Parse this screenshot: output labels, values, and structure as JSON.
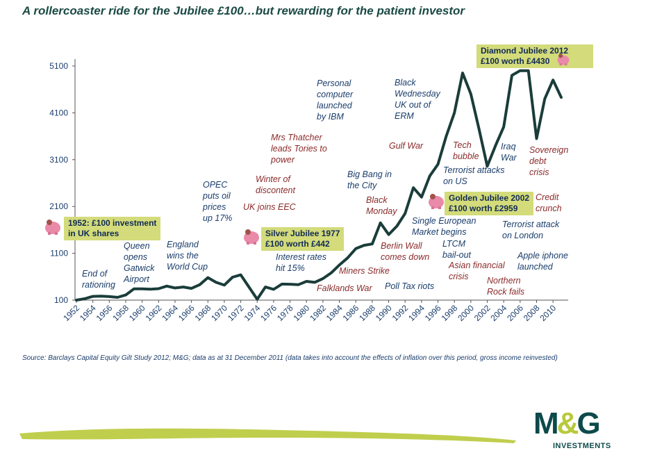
{
  "title": "A rollercoaster ride for the Jubilee £100…but rewarding for the patient investor",
  "colors": {
    "line": "#1a3d3a",
    "callout": "#d3db7a",
    "annotation_blue": "#1a3d6b",
    "annotation_red": "#8b2a2a",
    "logo": "#0d4a4a",
    "logo_accent": "#b9c93a"
  },
  "callouts": {
    "c1952": "1952: £100 investment\nin UK shares",
    "c1977": "Silver Jubilee 1977\n£100 worth £442",
    "c2002": "Golden Jubilee 2002\n£100 worth £2959",
    "c2012": "Diamond Jubilee 2012\n£100 worth £4430"
  },
  "annotations": {
    "end_of_rationing": "End of\nrationing",
    "queen_opens_gatwick": "Queen\nopens\nGatwick\nAirport",
    "england_world_cup": "England\nwins the\nWorld Cup",
    "opec": "OPEC\nputs oil\nprices\nup 17%",
    "winter_of_discontent": "Winter of\ndiscontent",
    "uk_joins_eec": "UK joins EEC",
    "mrs_thatcher": "Mrs Thatcher\nleads Tories to\npower",
    "interest_rates": "Interest rates\nhit 15%",
    "personal_computer": "Personal\ncomputer\nlaunched\nby IBM",
    "miners_strike": "Miners Strike",
    "falklands_war": "Falklands War",
    "big_bang": "Big Bang in\nthe City",
    "black_monday": "Black\nMonday",
    "poll_tax_riots": "Poll Tax riots",
    "berlin_wall": "Berlin Wall\ncomes down",
    "black_wednesday": "Black\nWednesday\nUK out of\nERM",
    "gulf_war": "Gulf War",
    "single_european_market": "Single European\nMarket begins",
    "ltcm": "LTCM\nbail-out",
    "asian_financial_crisis": "Asian financial\ncrisis",
    "tech_bubble": "Tech\nbubble",
    "terrorist_attacks_us": "Terrorist attacks\non US",
    "iraq_war": "Iraq\nWar",
    "northern_rock": "Northern\nRock fails",
    "sovereign_debt": "Sovereign\ndebt\ncrisis",
    "credit_crunch": "Credit\ncrunch",
    "terrorist_attack_london": "Terrorist attack\non London",
    "apple_iphone": "Apple iphone\nlaunched"
  },
  "source": "Source: Barclays Capital Equity Gilt Study 2012; M&G; data as at 31 December 2011 (data takes into account the effects of inflation over this period, gross income reinvested)",
  "logo": {
    "main_left": "M",
    "amp": "&",
    "main_right": "G",
    "sub": "INVESTMENTS"
  },
  "chart_data": {
    "type": "line",
    "title": "",
    "xlabel": "",
    "ylabel": "",
    "ylim": [
      100,
      5100
    ],
    "yticks": [
      100,
      1100,
      2100,
      3100,
      4100,
      5100
    ],
    "xticks": [
      1952,
      1954,
      1956,
      1958,
      1960,
      1962,
      1964,
      1966,
      1968,
      1970,
      1972,
      1974,
      1976,
      1978,
      1980,
      1982,
      1984,
      1986,
      1988,
      1990,
      1992,
      1994,
      1996,
      1998,
      2000,
      2002,
      2004,
      2006,
      2008,
      2010
    ],
    "x": [
      1952,
      1953,
      1954,
      1955,
      1956,
      1957,
      1958,
      1959,
      1960,
      1961,
      1962,
      1963,
      1964,
      1965,
      1966,
      1967,
      1968,
      1969,
      1970,
      1971,
      1972,
      1973,
      1974,
      1975,
      1976,
      1977,
      1978,
      1979,
      1980,
      1981,
      1982,
      1983,
      1984,
      1985,
      1986,
      1987,
      1988,
      1989,
      1990,
      1991,
      1992,
      1993,
      1994,
      1995,
      1996,
      1997,
      1998,
      1999,
      2000,
      2001,
      2002,
      2003,
      2004,
      2005,
      2006,
      2007,
      2008,
      2009,
      2010,
      2011
    ],
    "series": [
      {
        "values": [
          100,
          130,
          180,
          185,
          175,
          160,
          210,
          340,
          340,
          335,
          345,
          400,
          360,
          380,
          350,
          430,
          580,
          480,
          420,
          590,
          640,
          380,
          120,
          380,
          330,
          442,
          440,
          430,
          500,
          480,
          560,
          680,
          850,
          1000,
          1200,
          1270,
          1300,
          1750,
          1500,
          1680,
          1950,
          2500,
          2300,
          2750,
          3000,
          3600,
          4100,
          4950,
          4500,
          3750,
          2959,
          3400,
          3800,
          4900,
          5000,
          5000,
          3550,
          4400,
          4800,
          4430
        ]
      }
    ]
  }
}
